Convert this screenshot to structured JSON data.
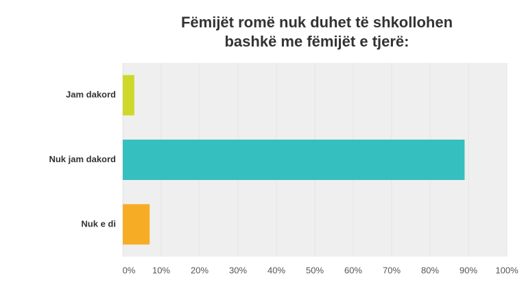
{
  "chart_data": {
    "type": "bar",
    "orientation": "horizontal",
    "title": [
      "Fëmijët romë nuk duhet të shkollohen",
      "bashkë me fëmijët e tjerë:"
    ],
    "categories": [
      "Jam dakord",
      "Nuk jam dakord",
      "Nuk e di"
    ],
    "values": [
      3,
      89,
      7
    ],
    "colors": [
      "#cdd82a",
      "#35bfbf",
      "#f6ad25"
    ],
    "xlim": [
      0,
      100
    ],
    "xticks": [
      {
        "value": 0,
        "label": "0%"
      },
      {
        "value": 10,
        "label": "10%"
      },
      {
        "value": 20,
        "label": "20%"
      },
      {
        "value": 30,
        "label": "30%"
      },
      {
        "value": 40,
        "label": "40%"
      },
      {
        "value": 50,
        "label": "50%"
      },
      {
        "value": 60,
        "label": "60%"
      },
      {
        "value": 70,
        "label": "70%"
      },
      {
        "value": 80,
        "label": "80%"
      },
      {
        "value": 90,
        "label": "90%"
      },
      {
        "value": 100,
        "label": "100%"
      }
    ],
    "grid": true
  }
}
